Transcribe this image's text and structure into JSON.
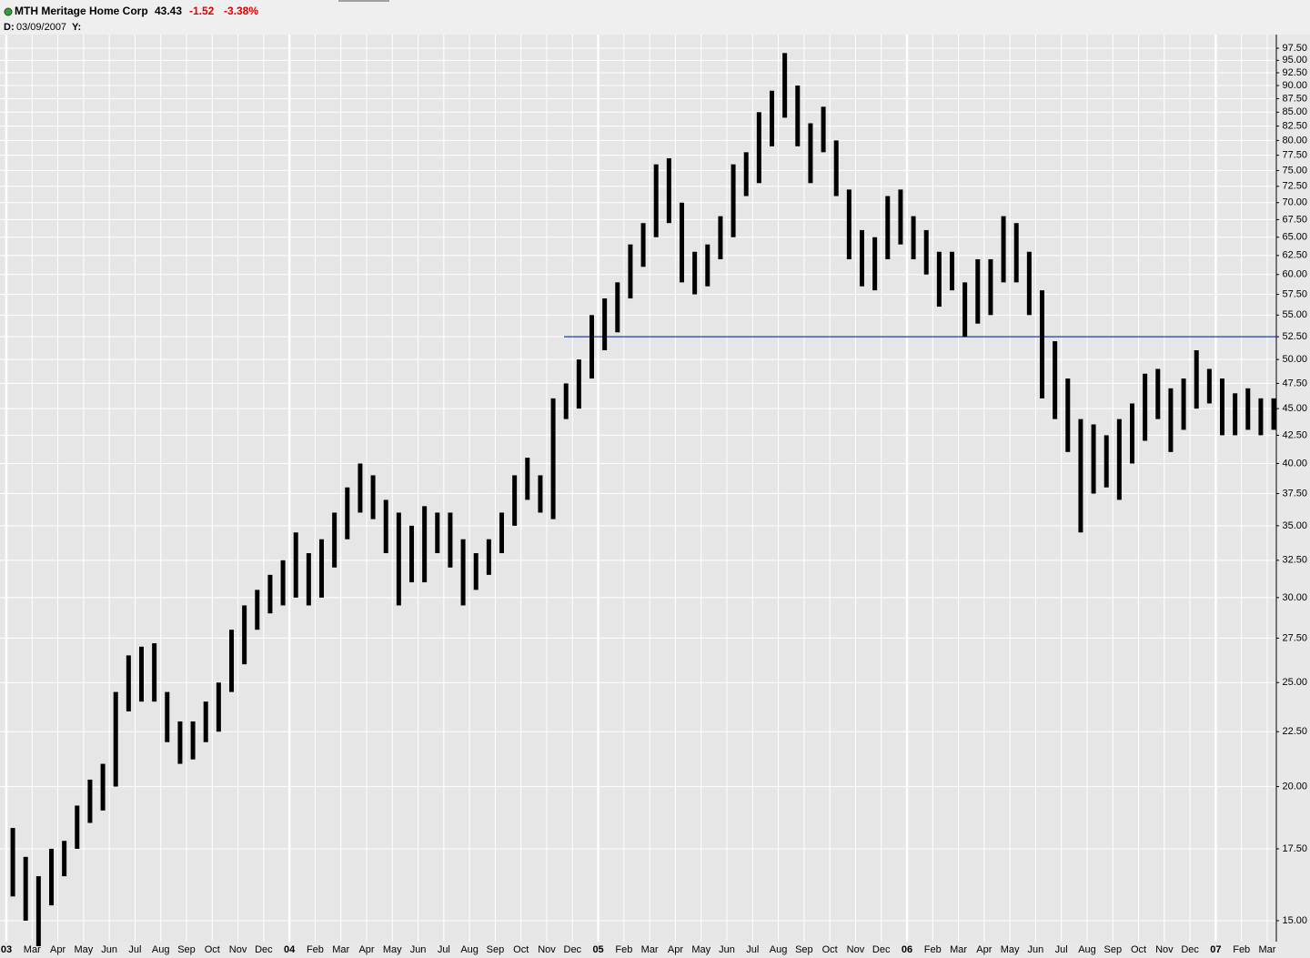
{
  "quote": {
    "symbol": "MTH Meritage Home Corp",
    "last": "43.43",
    "change": "-1.52",
    "change_pct": "-3.38%",
    "date_label": "D:",
    "date": "03/09/2007",
    "y_label": "Y:"
  },
  "chart_data": {
    "type": "hilo",
    "log_scale": true,
    "grid": true,
    "color": "#000000",
    "categories": [
      "03",
      null,
      "Mar",
      null,
      "Apr",
      null,
      "May",
      null,
      "Jun",
      null,
      "Jul",
      null,
      "Aug",
      null,
      "Sep",
      null,
      "Oct",
      null,
      "Nov",
      null,
      "Dec",
      null,
      "04",
      null,
      "Feb",
      null,
      "Mar",
      null,
      "Apr",
      null,
      "May",
      null,
      "Jun",
      null,
      "Jul",
      null,
      "Aug",
      null,
      "Sep",
      null,
      "Oct",
      null,
      "Nov",
      null,
      "Dec",
      null,
      "05",
      null,
      "Feb",
      null,
      "Mar",
      null,
      "Apr",
      null,
      "May",
      null,
      "Jun",
      null,
      "Jul",
      null,
      "Aug",
      null,
      "Sep",
      null,
      "Oct",
      null,
      "Nov",
      null,
      "Dec",
      null,
      "06",
      null,
      "Feb",
      null,
      "Mar",
      null,
      "Apr",
      null,
      "May",
      null,
      "Jun",
      null,
      "Jul",
      null,
      "Aug",
      null,
      "Sep",
      null,
      "Oct",
      null,
      "Nov",
      null,
      "Dec",
      null,
      "07",
      null,
      "Feb",
      null,
      "Mar",
      null
    ],
    "high": [
      18.3,
      17.2,
      16.5,
      17.5,
      17.8,
      19.2,
      20.3,
      21,
      24.5,
      26.5,
      27,
      27.2,
      24.5,
      23,
      23,
      24,
      25,
      28,
      29.5,
      30.5,
      31.5,
      32.5,
      34.5,
      33,
      34,
      36,
      38,
      40,
      39,
      37,
      36,
      35,
      36.5,
      36,
      36,
      34,
      33,
      34,
      36,
      39,
      40.5,
      39,
      46,
      47.5,
      50,
      55,
      57,
      59,
      64,
      67,
      76,
      77,
      70,
      63,
      64,
      68,
      76,
      78,
      85,
      89,
      96.5,
      90,
      83,
      86,
      80,
      72,
      66,
      65,
      71,
      72,
      68,
      66,
      63,
      63,
      59,
      62,
      62,
      68,
      67,
      63,
      58,
      52,
      48,
      44,
      43.5,
      42.5,
      44,
      45.5,
      48.5,
      49,
      47,
      48,
      51,
      49,
      48,
      46.5,
      47,
      46,
      46,
      null
    ],
    "low": [
      15.8,
      15.0,
      14.2,
      15.5,
      16.5,
      17.5,
      18.5,
      19,
      20,
      23.5,
      24,
      24,
      22,
      21,
      21.2,
      22,
      22.5,
      24.5,
      26,
      28,
      29,
      29.5,
      30,
      29.5,
      30,
      32,
      34,
      36,
      35.5,
      33,
      29.5,
      31,
      31,
      33,
      32,
      29.5,
      30.5,
      31.5,
      33,
      35,
      37,
      36,
      35.5,
      44,
      45,
      48,
      51,
      53,
      57,
      61,
      65,
      67,
      59,
      57.5,
      58.5,
      62,
      65,
      71,
      73,
      79,
      84,
      79,
      73,
      78,
      71,
      62,
      58.5,
      58,
      62,
      64,
      62,
      60,
      56,
      58,
      52.5,
      54,
      55,
      59,
      59,
      55,
      46,
      44,
      41,
      34.5,
      37.5,
      38,
      37,
      40,
      42,
      44,
      41,
      43,
      45,
      45.5,
      42.5,
      42.5,
      43,
      42.5,
      43,
      null
    ],
    "hline": {
      "value": 52.5,
      "color": "#1f3f9f"
    },
    "ylim": [
      14.34,
      100.4
    ],
    "yticks": [
      {
        "value": 15,
        "label": "15.00"
      },
      {
        "value": 17.5,
        "label": "17.50"
      },
      {
        "value": 20,
        "label": "20.00"
      },
      {
        "value": 22.5,
        "label": "22.50"
      },
      {
        "value": 25,
        "label": "25.00"
      },
      {
        "value": 27.5,
        "label": "27.50"
      },
      {
        "value": 30,
        "label": "30.00"
      },
      {
        "value": 32.5,
        "label": "32.50"
      },
      {
        "value": 35,
        "label": "35.00"
      },
      {
        "value": 37.5,
        "label": "37.50"
      },
      {
        "value": 40,
        "label": "40.00"
      },
      {
        "value": 42.5,
        "label": "42.50"
      },
      {
        "value": 45,
        "label": "45.00"
      },
      {
        "value": 47.5,
        "label": "47.50"
      },
      {
        "value": 50,
        "label": "50.00"
      },
      {
        "value": 52.5,
        "label": "52.50"
      },
      {
        "value": 55,
        "label": "55.00"
      },
      {
        "value": 57.5,
        "label": "57.50"
      },
      {
        "value": 60,
        "label": "60.00"
      },
      {
        "value": 62.5,
        "label": "62.50"
      },
      {
        "value": 65,
        "label": "65.00"
      },
      {
        "value": 67.5,
        "label": "67.50"
      },
      {
        "value": 70,
        "label": "70.00"
      },
      {
        "value": 72.5,
        "label": "72.50"
      },
      {
        "value": 75,
        "label": "75.00"
      },
      {
        "value": 77.5,
        "label": "77.50"
      },
      {
        "value": 80,
        "label": "80.00"
      },
      {
        "value": 82.5,
        "label": "82.50"
      },
      {
        "value": 85,
        "label": "85.00"
      },
      {
        "value": 87.5,
        "label": "87.50"
      },
      {
        "value": 90,
        "label": "90.00"
      },
      {
        "value": 92.5,
        "label": "92.50"
      },
      {
        "value": 95,
        "label": "95.00"
      },
      {
        "value": 97.5,
        "label": "97.50"
      }
    ]
  }
}
